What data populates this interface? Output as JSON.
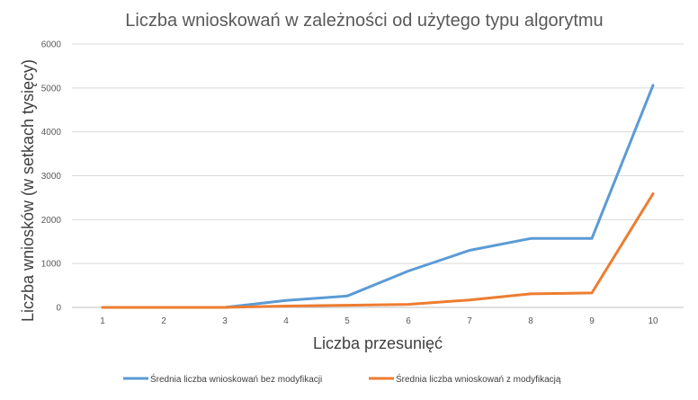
{
  "chart_data": {
    "type": "line",
    "title": "Liczba wnioskowań w zależności od użytego typu algorytmu",
    "xlabel": "Liczba przesunięć",
    "ylabel": "Liczba wniosków (w setkach tysięcy)",
    "categories": [
      "1",
      "2",
      "3",
      "4",
      "5",
      "6",
      "7",
      "8",
      "9",
      "10"
    ],
    "ylim": [
      0,
      6000
    ],
    "yticks": [
      "0",
      "1000",
      "2000",
      "3000",
      "4000",
      "5000",
      "6000"
    ],
    "grid": true,
    "legend_position": "bottom",
    "series": [
      {
        "name": "Średnia liczba wnioskowań bez modyfikacji",
        "color": "#5b9bd5",
        "values": [
          0,
          0,
          0,
          160,
          260,
          830,
          1300,
          1570,
          1570,
          5060
        ]
      },
      {
        "name": "Średnia liczba wnioskowań z modyfikacją",
        "color": "#ed7d31",
        "values": [
          0,
          0,
          0,
          30,
          50,
          70,
          170,
          310,
          330,
          2590
        ]
      }
    ]
  }
}
